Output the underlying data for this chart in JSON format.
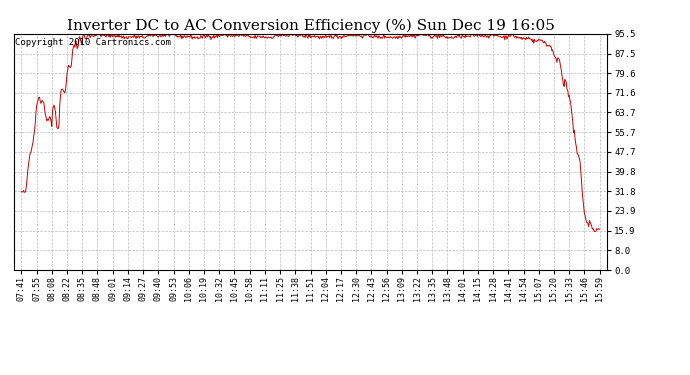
{
  "title": "Inverter DC to AC Conversion Efficiency (%) Sun Dec 19 16:05",
  "copyright_text": "Copyright 2010 Cartronics.com",
  "line_color": "#cc0000",
  "background_color": "#ffffff",
  "plot_bg_color": "#ffffff",
  "grid_color": "#bbbbbb",
  "y_ticks": [
    0.0,
    8.0,
    15.9,
    23.9,
    31.8,
    39.8,
    47.7,
    55.7,
    63.7,
    71.6,
    79.6,
    87.5,
    95.5
  ],
  "x_labels": [
    "07:41",
    "07:55",
    "08:08",
    "08:22",
    "08:35",
    "08:48",
    "09:01",
    "09:14",
    "09:27",
    "09:40",
    "09:53",
    "10:06",
    "10:19",
    "10:32",
    "10:45",
    "10:58",
    "11:11",
    "11:25",
    "11:38",
    "11:51",
    "12:04",
    "12:17",
    "12:30",
    "12:43",
    "12:56",
    "13:09",
    "13:22",
    "13:35",
    "13:48",
    "14:01",
    "14:15",
    "14:28",
    "14:41",
    "14:54",
    "15:07",
    "15:20",
    "15:33",
    "15:46",
    "15:59"
  ],
  "ylim": [
    0.0,
    95.5
  ],
  "title_fontsize": 11,
  "copyright_fontsize": 6.5,
  "tick_fontsize": 6,
  "line_width": 0.7
}
